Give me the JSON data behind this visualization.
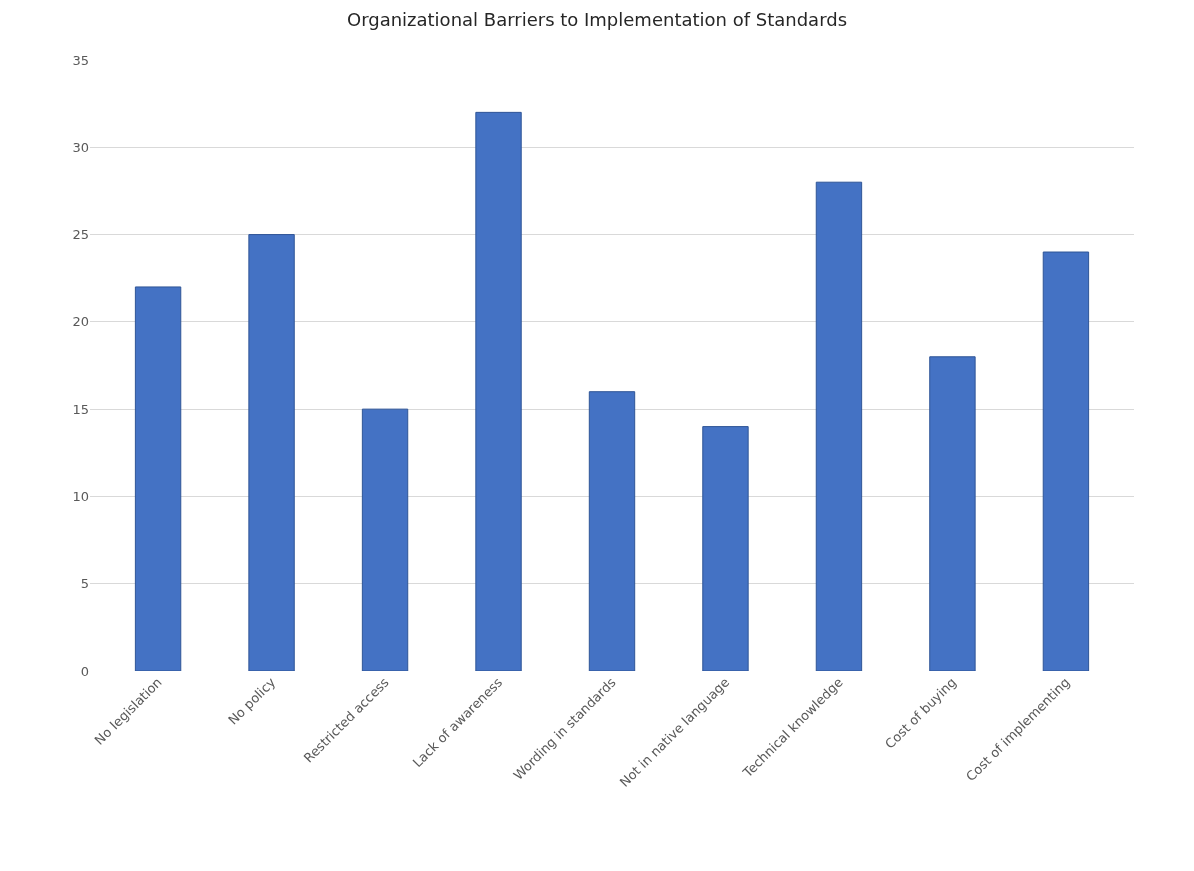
{
  "chart_data": {
    "type": "bar",
    "title": "Organizational Barriers to Implementation of Standards",
    "categories": [
      "No legislation",
      "No policy",
      "Restricted access",
      "Lack of awareness",
      "Wording in standards",
      "Not in native language",
      "Technical knowledge",
      "Cost of buying",
      "Cost of implementing"
    ],
    "values": [
      22,
      25,
      15,
      32,
      16,
      14,
      28,
      18,
      24
    ],
    "color": "#4472c4",
    "ylim": [
      0,
      35
    ],
    "yticks": [
      0,
      5,
      10,
      15,
      20,
      25,
      30,
      35
    ],
    "grid": "y"
  }
}
